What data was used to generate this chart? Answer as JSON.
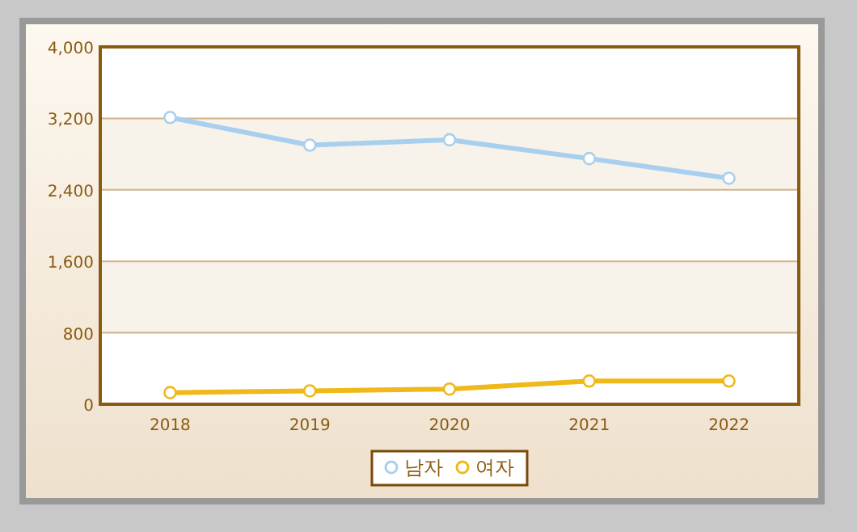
{
  "chart_data": {
    "type": "line",
    "categories": [
      "2018",
      "2019",
      "2020",
      "2021",
      "2022"
    ],
    "series": [
      {
        "name": "남자",
        "color": "#a8d0ee",
        "values": [
          3210,
          2900,
          2960,
          2750,
          2530
        ]
      },
      {
        "name": "여자",
        "color": "#f0b818",
        "values": [
          130,
          150,
          170,
          260,
          260
        ]
      }
    ],
    "ylim": [
      0,
      4000
    ],
    "yticks": [
      {
        "value": 0,
        "label": "0"
      },
      {
        "value": 800,
        "label": "800"
      },
      {
        "value": 1600,
        "label": "1,600"
      },
      {
        "value": 2400,
        "label": "2,400"
      },
      {
        "value": 3200,
        "label": "3,200"
      },
      {
        "value": 4000,
        "label": "4,000"
      }
    ],
    "grid": "y",
    "legend": "bottom",
    "marker": "circle",
    "line_style": "solid"
  }
}
